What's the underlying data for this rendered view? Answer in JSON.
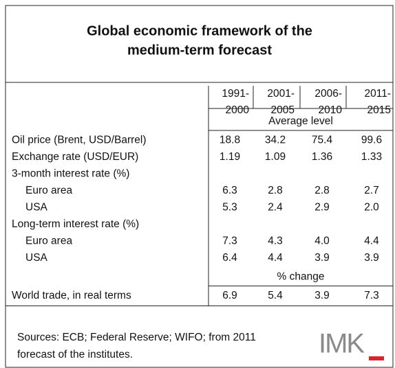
{
  "table": {
    "title": [
      "Global economic framework of the",
      "medium-term forecast"
    ],
    "columns": [
      [
        "1991-",
        "2000"
      ],
      [
        "2001-",
        "2005"
      ],
      [
        "2006-",
        "2010"
      ],
      [
        "2011-",
        "2015"
      ]
    ],
    "blocks": [
      {
        "heading": "Average level",
        "rows": [
          {
            "label": "Oil price (Brent, USD/Barrel)",
            "values": [
              "18.8",
              "34.2",
              "75.4",
              "99.6"
            ]
          },
          {
            "label": "Exchange rate (USD/EUR)",
            "values": [
              "1.19",
              "1.09",
              "1.36",
              "1.33"
            ]
          },
          {
            "label": "3-month interest rate (%)",
            "subrows": [
              {
                "label": "Euro area",
                "values": [
                  "6.3",
                  "2.8",
                  "2.8",
                  "2.7"
                ]
              },
              {
                "label": "USA",
                "values": [
                  "5.3",
                  "2.4",
                  "2.9",
                  "2.0"
                ]
              }
            ]
          },
          {
            "label": "Long-term interest rate (%)",
            "subrows": [
              {
                "label": "Euro area",
                "values": [
                  "7.3",
                  "4.3",
                  "4.0",
                  "4.4"
                ]
              },
              {
                "label": "USA",
                "values": [
                  "6.4",
                  "4.4",
                  "3.9",
                  "3.9"
                ]
              }
            ]
          }
        ]
      },
      {
        "heading": "% change",
        "rows": [
          {
            "label": "World trade, in real terms",
            "values": [
              "6.9",
              "5.4",
              "3.9",
              "7.3"
            ]
          }
        ]
      }
    ]
  },
  "footer": {
    "source": [
      "Sources: ECB; Federal Reserve; WIFO; from 2011",
      "forecast of the institutes."
    ],
    "logo": "IMK"
  }
}
